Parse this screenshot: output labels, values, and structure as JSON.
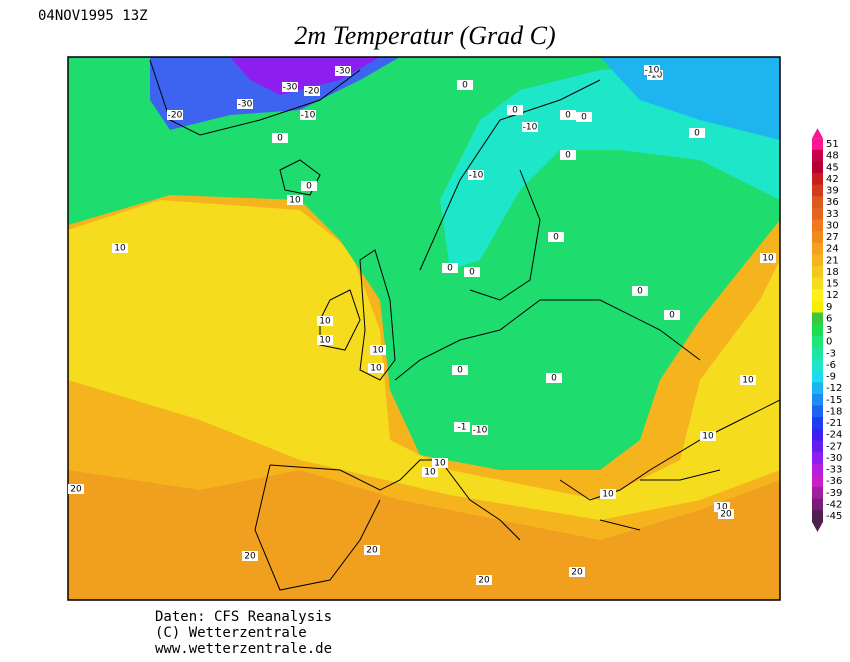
{
  "header": {
    "date": "04NOV1995 13Z",
    "title": "2m Temperatur (Grad C)"
  },
  "map": {
    "contour_labels": [
      "-20",
      "-30",
      "-30",
      "-20",
      "-30",
      "-10",
      "0",
      "-10",
      "-10",
      "0",
      "0",
      "10",
      "0",
      "10",
      "-10",
      "0",
      "0",
      "0",
      "0",
      "0",
      "0",
      "10",
      "10",
      "10",
      "10",
      "10",
      "0",
      "0",
      "-1",
      "-10",
      "0",
      "10",
      "10",
      "10",
      "10",
      "10",
      "20",
      "20",
      "20",
      "20",
      "20",
      "10",
      "20",
      "-10",
      "0",
      "0"
    ]
  },
  "colorbar": {
    "labels": [
      "51",
      "48",
      "45",
      "42",
      "39",
      "36",
      "33",
      "30",
      "27",
      "24",
      "21",
      "18",
      "15",
      "12",
      "9",
      "6",
      "3",
      "0",
      "-3",
      "-6",
      "-9",
      "-12",
      "-15",
      "-18",
      "-21",
      "-24",
      "-27",
      "-30",
      "-33",
      "-36",
      "-39",
      "-42",
      "-45"
    ],
    "colors": [
      "#ff1493",
      "#c8004a",
      "#b40032",
      "#c81e1e",
      "#d23c1e",
      "#dc5a1e",
      "#e6641e",
      "#f0781e",
      "#f08c1e",
      "#f5a01e",
      "#f5b41e",
      "#f5c81e",
      "#f5dc1e",
      "#fff01e",
      "#f0f000",
      "#3cc83c",
      "#1edc50",
      "#1ee678",
      "#1ee6a0",
      "#1ee6c8",
      "#1edcf0",
      "#1eb4f0",
      "#1e8cf0",
      "#1e64f0",
      "#1e3cf0",
      "#3c1ef0",
      "#641ef0",
      "#8c1ef0",
      "#b41edc",
      "#c81ec8",
      "#a01ea0",
      "#781e78",
      "#501e50"
    ]
  },
  "footer": {
    "lines": [
      "Daten: CFS Reanalysis",
      "(C) Wetterzentrale",
      "www.wetterzentrale.de"
    ]
  }
}
